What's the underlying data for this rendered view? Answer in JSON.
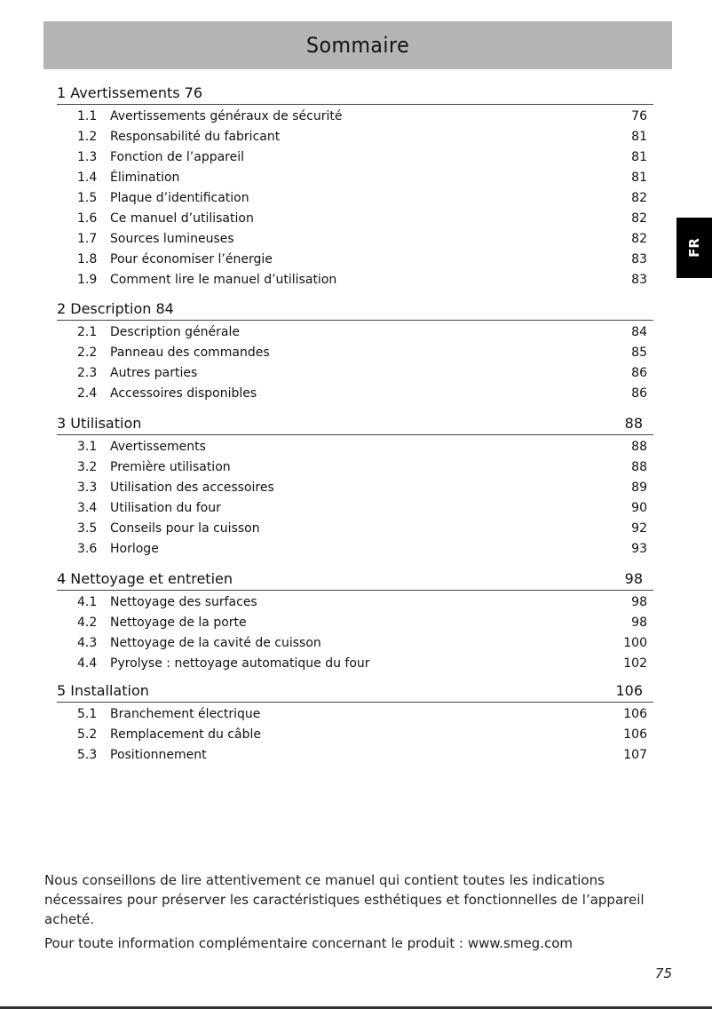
{
  "title": "Sommaire",
  "language_tab": "FR",
  "sections": [
    {
      "heading": "1 Avertissements 76",
      "page": "",
      "items": [
        {
          "num": "1.1",
          "title": "Avertissements généraux de sécurité",
          "page": "76"
        },
        {
          "num": "1.2",
          "title": "Responsabilité du fabricant",
          "page": "81"
        },
        {
          "num": "1.3",
          "title": "Fonction de l’appareil",
          "page": "81"
        },
        {
          "num": "1.4",
          "title": "Élimination",
          "page": "81"
        },
        {
          "num": "1.5",
          "title": "Plaque d’identification",
          "page": "82"
        },
        {
          "num": "1.6",
          "title": "Ce manuel d’utilisation",
          "page": "82"
        },
        {
          "num": "1.7",
          "title": "Sources lumineuses",
          "page": "82"
        },
        {
          "num": "1.8",
          "title": "Pour économiser l’énergie",
          "page": "83"
        },
        {
          "num": "1.9",
          "title": "Comment lire le manuel d’utilisation",
          "page": "83"
        }
      ]
    },
    {
      "heading": "2 Description 84",
      "page": "",
      "items": [
        {
          "num": "2.1",
          "title": "Description générale",
          "page": "84"
        },
        {
          "num": "2.2",
          "title": "Panneau des commandes",
          "page": "85"
        },
        {
          "num": "2.3",
          "title": "Autres parties",
          "page": "86"
        },
        {
          "num": "2.4",
          "title": "Accessoires disponibles",
          "page": "86"
        }
      ]
    },
    {
      "heading": "3 Utilisation",
      "page": "88",
      "items": [
        {
          "num": "3.1",
          "title": "Avertissements",
          "page": "88"
        },
        {
          "num": "3.2",
          "title": "Première utilisation",
          "page": "88"
        },
        {
          "num": "3.3",
          "title": "Utilisation des accessoires",
          "page": "89"
        },
        {
          "num": "3.4",
          "title": "Utilisation du four",
          "page": "90"
        },
        {
          "num": "3.5",
          "title": "Conseils pour la cuisson",
          "page": "92"
        },
        {
          "num": "3.6",
          "title": "Horloge",
          "page": "93"
        }
      ]
    },
    {
      "heading": "4 Nettoyage et entretien",
      "page": "98",
      "items": [
        {
          "num": "4.1",
          "title": "Nettoyage des surfaces",
          "page": "98"
        },
        {
          "num": "4.2",
          "title": "Nettoyage de la porte",
          "page": "98"
        },
        {
          "num": "4.3",
          "title": "Nettoyage de la cavité de cuisson",
          "page": "100"
        },
        {
          "num": "4.4",
          "title": "Pyrolyse : nettoyage automatique du four",
          "page": "102"
        }
      ]
    },
    {
      "heading": "5 Installation",
      "page": "106",
      "items": [
        {
          "num": "5.1",
          "title": "Branchement électrique",
          "page": "106"
        },
        {
          "num": "5.2",
          "title": "Remplacement du câble",
          "page": "106"
        },
        {
          "num": "5.3",
          "title": "Positionnement",
          "page": "107"
        }
      ]
    }
  ],
  "intro": {
    "paragraph1": "Nous conseillons de lire attentivement ce manuel qui contient toutes les indications nécessaires pour préserver les caractéristiques esthétiques et fonctionnelles de l’appareil acheté.",
    "paragraph2": "Pour toute information complémentaire concernant le produit : www.smeg.com"
  },
  "page_number": "75"
}
